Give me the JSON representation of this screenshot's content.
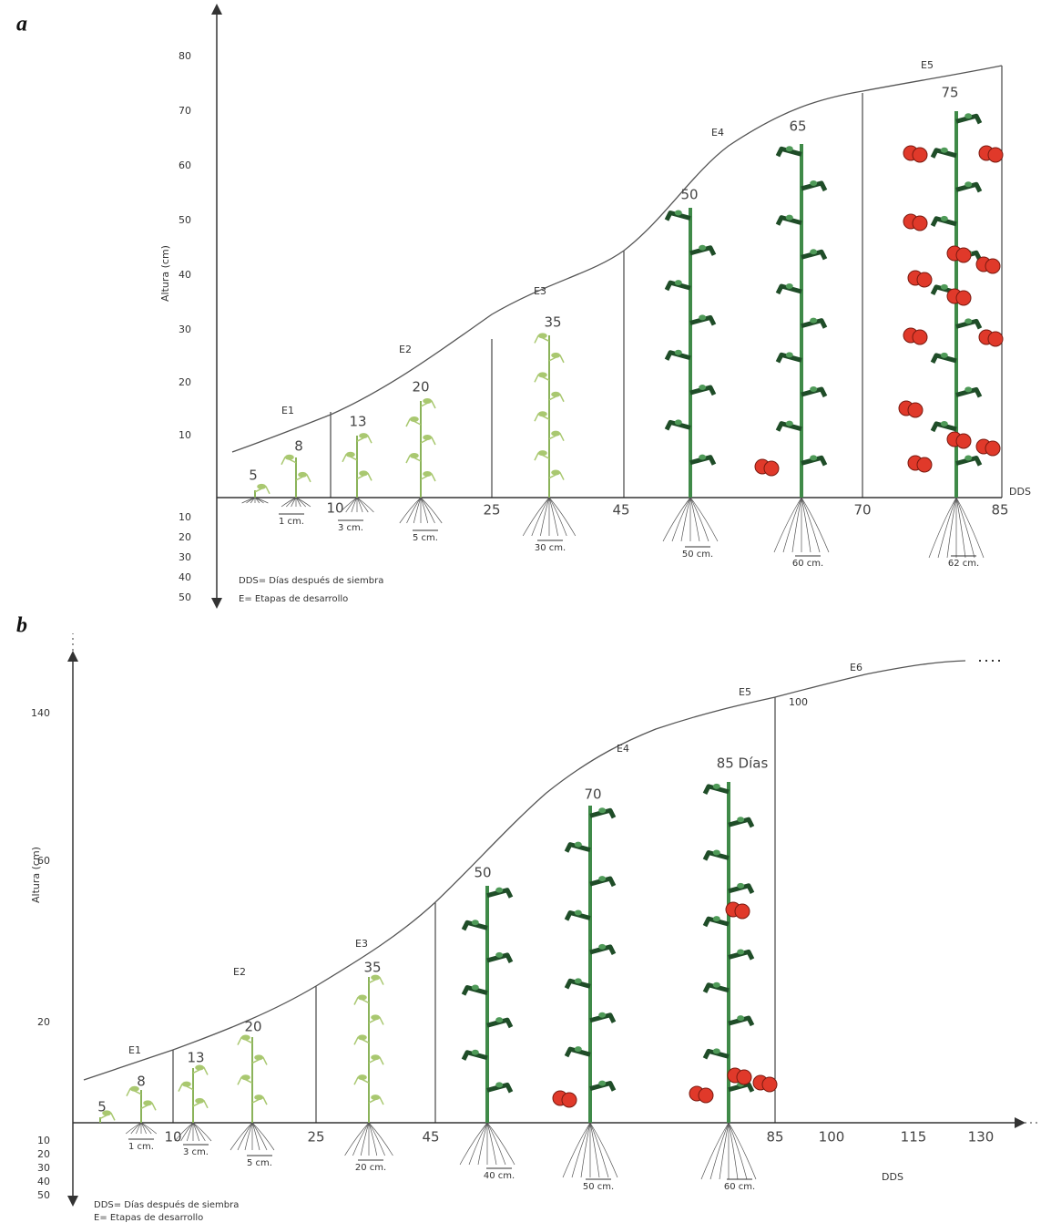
{
  "panels": [
    {
      "label": "a",
      "y_axis_title": "Altura (cm)",
      "y_ticks_up": [
        "80",
        "70",
        "60",
        "50",
        "40",
        "30",
        "20",
        "10"
      ],
      "y_ticks_down": [
        "10",
        "20",
        "30",
        "40",
        "50"
      ],
      "x_axis_title": "DDS",
      "x_ticks": [
        "10",
        "25",
        "45",
        "70",
        "85"
      ],
      "stages": [
        "E1",
        "E2",
        "E3",
        "E4",
        "E5"
      ],
      "plant_ages": [
        "5",
        "8",
        "13",
        "20",
        "35",
        "50",
        "65",
        "75"
      ],
      "root_depths": [
        "1 cm.",
        "3 cm.",
        "5 cm.",
        "30 cm.",
        "50 cm.",
        "60 cm.",
        "62 cm."
      ],
      "notes": [
        "DDS= Días después de siembra",
        "E= Etapas de desarrollo"
      ]
    },
    {
      "label": "b",
      "y_axis_title": "Altura (cm)",
      "y_ticks_up": [
        "140",
        "60",
        "20"
      ],
      "y_ticks_down": [
        "10",
        "20",
        "30",
        "40",
        "50"
      ],
      "x_axis_title": "DDS",
      "x_ticks": [
        "10",
        "25",
        "45",
        "85",
        "100",
        "115",
        "130"
      ],
      "stages": [
        "E1",
        "E2",
        "E3",
        "E4",
        "E5",
        "E6"
      ],
      "plant_ages": [
        "5",
        "8",
        "13",
        "20",
        "35",
        "50",
        "70",
        "85 Días"
      ],
      "curve_label": "100",
      "root_depths": [
        "1 cm.",
        "3 cm.",
        "5 cm.",
        "20 cm.",
        "40 cm.",
        "50 cm.",
        "60 cm."
      ],
      "notes": [
        "DDS= Días después de siembra",
        "E= Etapas de desarrollo"
      ]
    }
  ]
}
